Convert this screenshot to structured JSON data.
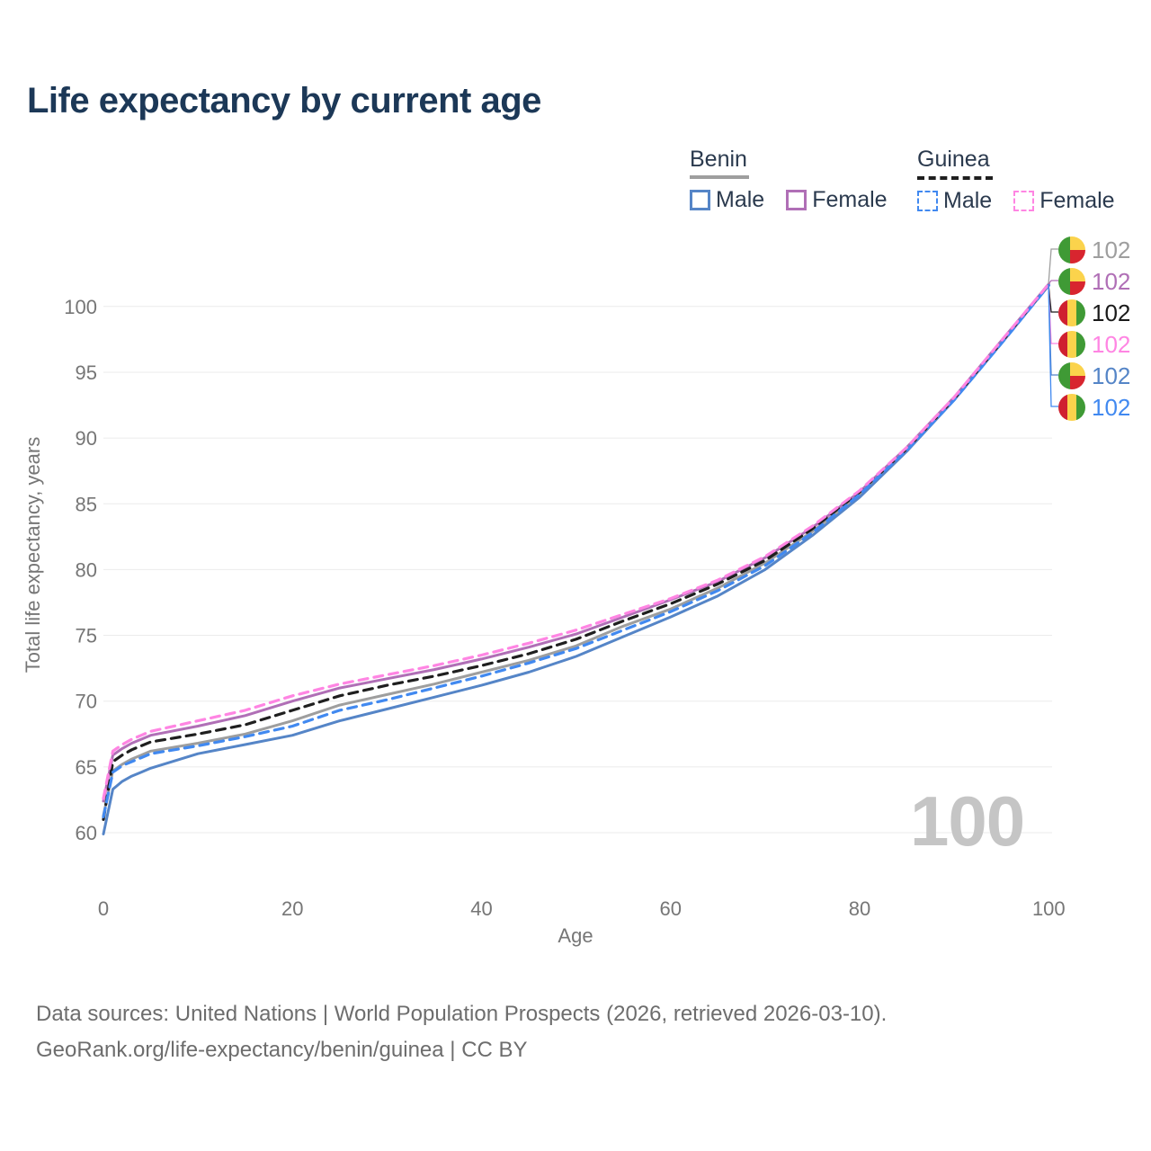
{
  "title": "Life expectancy by current age",
  "legend": {
    "benin": {
      "label": "Benin",
      "male": "Male",
      "female": "Female"
    },
    "guinea": {
      "label": "Guinea",
      "male": "Male",
      "female": "Female"
    }
  },
  "end_labels": [
    {
      "series": "Benin",
      "value": "102",
      "color": "#9e9e9e",
      "flag": "benin"
    },
    {
      "series": "Benin female",
      "value": "102",
      "color": "#b06fb6",
      "flag": "benin"
    },
    {
      "series": "Guinea",
      "value": "102",
      "color": "#1a1a1a",
      "flag": "guinea"
    },
    {
      "series": "Guinea female",
      "value": "102",
      "color": "#ff85e3",
      "flag": "guinea"
    },
    {
      "series": "Benin male",
      "value": "102",
      "color": "#5585c7",
      "flag": "benin"
    },
    {
      "series": "Guinea male",
      "value": "102",
      "color": "#4189f0",
      "flag": "guinea"
    }
  ],
  "flag_colors": {
    "benin": [
      "#3f9a35",
      "#fbd34c",
      "#d8252f"
    ],
    "guinea": [
      "#cf2030",
      "#fbd34c",
      "#3f9a35"
    ]
  },
  "watermark": "100",
  "footer": {
    "line1": "Data sources: United Nations | World Population Prospects (2026, retrieved 2026-03-10).",
    "line2": "GeoRank.org/life-expectancy/benin/guinea | CC BY"
  },
  "chart_data": {
    "type": "line",
    "title": "Life expectancy by current age",
    "xlabel": "Age",
    "ylabel": "Total life expectancy, years",
    "x_ticks": [
      0,
      20,
      40,
      60,
      80,
      100
    ],
    "y_ticks": [
      60,
      65,
      70,
      75,
      80,
      85,
      90,
      95,
      100
    ],
    "xlim": [
      0,
      100
    ],
    "ylim": [
      58,
      103
    ],
    "grid": "horizontal",
    "legend_position": "top-right",
    "ages": [
      0,
      1,
      2,
      3,
      4,
      5,
      10,
      15,
      20,
      25,
      30,
      35,
      40,
      45,
      50,
      55,
      60,
      65,
      70,
      75,
      80,
      85,
      90,
      95,
      100
    ],
    "series": [
      {
        "name": "Benin",
        "country": "Benin",
        "sex": "both",
        "line": "solid",
        "color": "#9e9e9e",
        "values": [
          61.3,
          64.7,
          65.2,
          65.6,
          65.9,
          66.2,
          66.8,
          67.5,
          68.5,
          69.7,
          70.5,
          71.3,
          72.2,
          73.1,
          74.2,
          75.7,
          77.0,
          78.6,
          80.5,
          82.9,
          85.7,
          89.1,
          93.0,
          97.3,
          101.7
        ]
      },
      {
        "name": "Benin female",
        "country": "Benin",
        "sex": "female",
        "line": "solid",
        "color": "#b06fb6",
        "values": [
          62.4,
          65.9,
          66.4,
          66.8,
          67.1,
          67.4,
          68.1,
          68.9,
          70.0,
          71.0,
          71.7,
          72.4,
          73.2,
          74.1,
          75.1,
          76.4,
          77.7,
          79.1,
          80.9,
          83.2,
          85.9,
          89.3,
          93.1,
          97.4,
          101.7
        ]
      },
      {
        "name": "Benin male",
        "country": "Benin",
        "sex": "male",
        "line": "solid",
        "color": "#5585c7",
        "values": [
          59.9,
          63.3,
          63.9,
          64.3,
          64.6,
          64.9,
          66.0,
          66.7,
          67.4,
          68.5,
          69.4,
          70.3,
          71.2,
          72.2,
          73.4,
          74.9,
          76.4,
          78.0,
          80.0,
          82.6,
          85.5,
          89.0,
          92.9,
          97.2,
          101.6
        ]
      },
      {
        "name": "Guinea",
        "country": "Guinea",
        "sex": "both",
        "line": "dashed",
        "color": "#1f1f1f",
        "values": [
          61.0,
          65.4,
          65.9,
          66.3,
          66.6,
          66.9,
          67.5,
          68.2,
          69.3,
          70.4,
          71.2,
          71.9,
          72.7,
          73.6,
          74.7,
          76.1,
          77.4,
          78.9,
          80.7,
          83.1,
          85.9,
          89.2,
          93.0,
          97.3,
          101.7
        ]
      },
      {
        "name": "Guinea male",
        "country": "Guinea",
        "sex": "male",
        "line": "dashed",
        "color": "#4189f0",
        "values": [
          61.2,
          64.6,
          65.1,
          65.4,
          65.7,
          66.0,
          66.6,
          67.3,
          68.1,
          69.3,
          70.1,
          71.0,
          71.9,
          72.9,
          74.0,
          75.4,
          76.8,
          78.4,
          80.3,
          82.8,
          85.7,
          89.1,
          92.9,
          97.2,
          101.6
        ]
      },
      {
        "name": "Guinea female",
        "country": "Guinea",
        "sex": "female",
        "line": "dashed",
        "color": "#ff85e3",
        "values": [
          62.6,
          66.2,
          66.7,
          67.1,
          67.4,
          67.7,
          68.5,
          69.3,
          70.4,
          71.3,
          72.0,
          72.7,
          73.5,
          74.4,
          75.4,
          76.6,
          77.8,
          79.2,
          81.0,
          83.3,
          86.0,
          89.3,
          93.1,
          97.4,
          101.7
        ]
      }
    ]
  }
}
